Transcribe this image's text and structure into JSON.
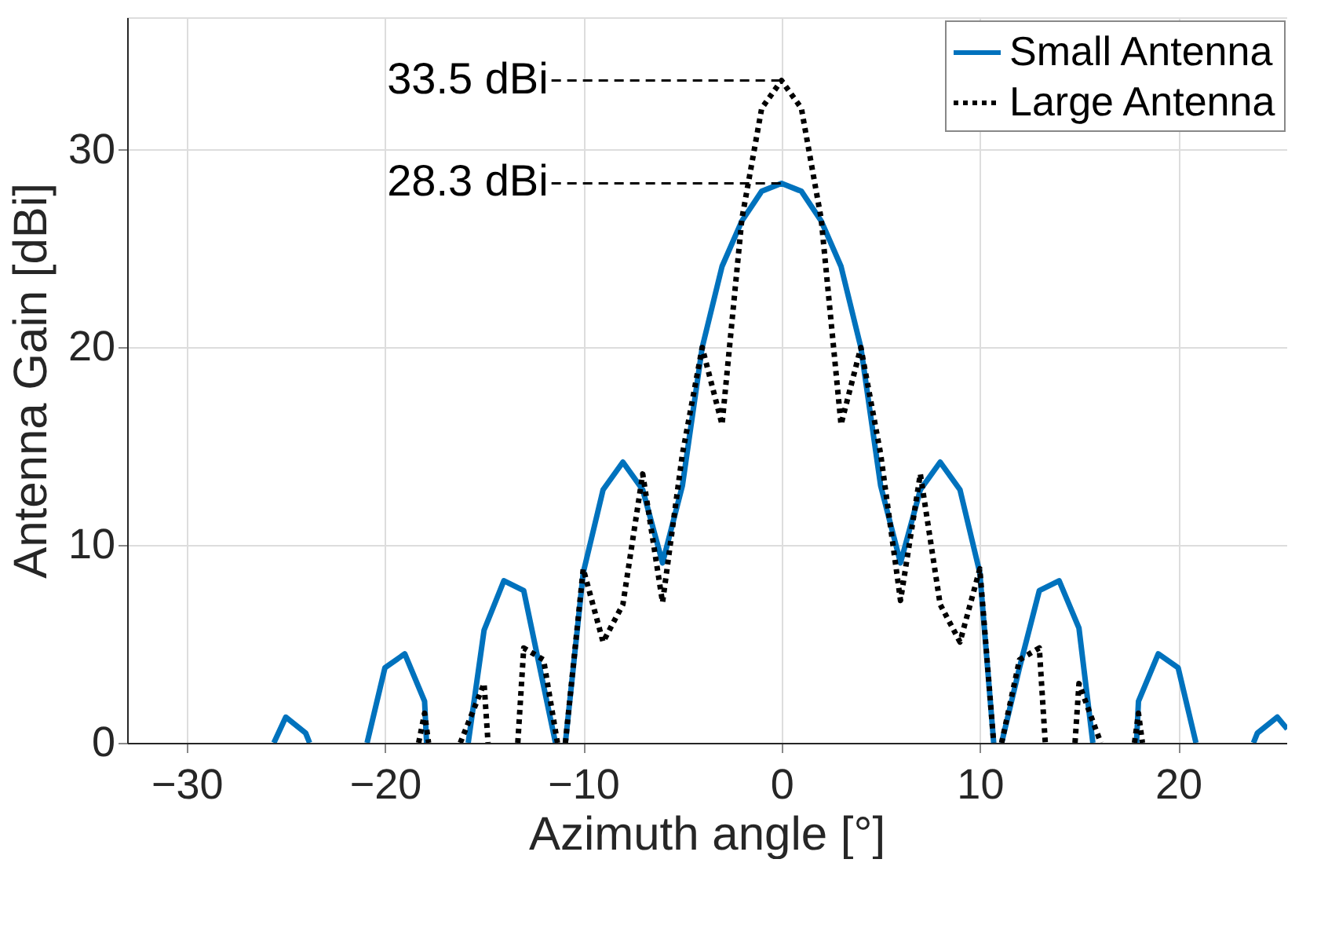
{
  "chart_data": {
    "type": "line",
    "xlabel": "Azimuth angle [°]",
    "ylabel": "Antenna Gain [dBi]",
    "xlim": [
      -33,
      25.5
    ],
    "ylim": [
      0,
      36.7
    ],
    "xticks": [
      -30,
      -20,
      -10,
      0,
      10,
      20
    ],
    "yticks": [
      0,
      10,
      20,
      30
    ],
    "grid": true,
    "legend": "top right",
    "series": [
      {
        "name": "Small Antenna",
        "color": "#0072bd",
        "line_style": "solid",
        "x": [
          -25.6,
          -25,
          -24,
          -23.8,
          -22,
          -20.9,
          -20,
          -19,
          -18,
          -17.9,
          -17,
          -15.8,
          -15,
          -14,
          -13,
          -11.4,
          -11.2,
          -10.9,
          -10,
          -9,
          -8,
          -7,
          -6,
          -5,
          -4,
          -3,
          -2,
          -1,
          0,
          1,
          2,
          3,
          4,
          5,
          6,
          7,
          8,
          9,
          10,
          10.7,
          10.9,
          11.1,
          12,
          13,
          14,
          15,
          15.7,
          17,
          17.9,
          18,
          19,
          20,
          20.9,
          22,
          23.8,
          24,
          25,
          25.5
        ],
        "values": [
          0,
          1.3,
          0.5,
          0,
          null,
          0,
          3.8,
          4.5,
          2.1,
          0,
          null,
          0,
          5.7,
          8.2,
          7.7,
          0,
          null,
          0,
          8.6,
          12.8,
          14.2,
          12.8,
          9.1,
          13,
          20,
          24.1,
          26.4,
          27.9,
          28.3,
          27.9,
          26.4,
          24.1,
          20,
          13,
          9.1,
          12.8,
          14.2,
          12.8,
          8.6,
          0,
          null,
          0,
          3.8,
          7.7,
          8.2,
          5.8,
          0,
          null,
          0,
          2.1,
          4.5,
          3.8,
          0,
          null,
          0,
          0.5,
          1.3,
          0.7
        ]
      },
      {
        "name": "Large Antenna",
        "color": "#000000",
        "line_style": "dotted",
        "x": [
          -18.3,
          -18,
          -17.8,
          -17,
          -16.2,
          -15,
          -14.8,
          -14,
          -13.3,
          -13,
          -12,
          -11.3,
          -11.1,
          -10.9,
          -10,
          -9,
          -8,
          -7,
          -6,
          -5,
          -4,
          -3,
          -2,
          -1,
          0,
          1,
          2,
          3,
          4,
          5,
          6,
          7,
          8,
          9,
          10,
          10.7,
          10.9,
          11.1,
          12,
          13,
          13.3,
          14,
          14.8,
          15,
          16.1,
          17,
          17.8,
          18,
          18.2
        ],
        "values": [
          0,
          1.5,
          0,
          null,
          0,
          3.0,
          0,
          null,
          0,
          4.8,
          4.2,
          0,
          null,
          0,
          8.8,
          5.1,
          7,
          13.6,
          7.1,
          14.6,
          20,
          16.1,
          26.5,
          32.1,
          33.5,
          32.1,
          26.5,
          16.1,
          20,
          14.6,
          7.2,
          13.6,
          7,
          5.1,
          8.8,
          0,
          null,
          0,
          4.2,
          4.8,
          0,
          null,
          0,
          3.0,
          0,
          null,
          0,
          1.5,
          0
        ]
      }
    ],
    "annotations": [
      {
        "text": "33.5 dBi",
        "x": 0,
        "y": 33.5
      },
      {
        "text": "28.3 dBi",
        "x": 0,
        "y": 28.3
      }
    ]
  }
}
